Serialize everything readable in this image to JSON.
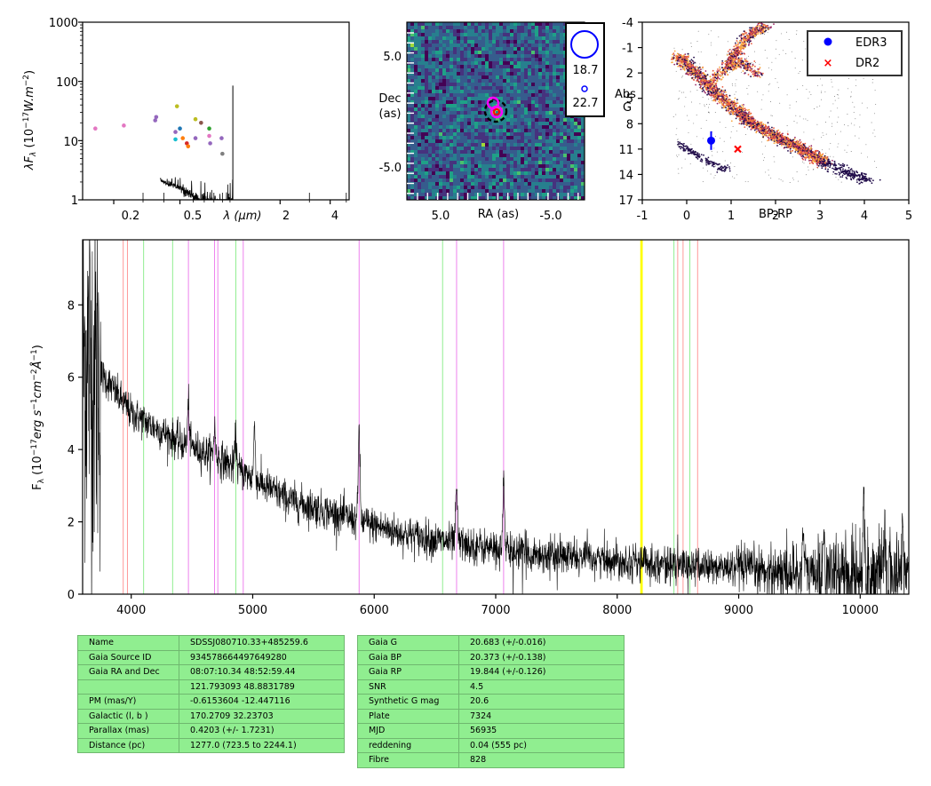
{
  "colors": {
    "hydrogen_lines": "#ff9999",
    "green_lines": "#90ee90",
    "violet_lines": "#ee82ee",
    "yellow_band": "#ffff00",
    "table_bg": "#90ee90",
    "edr3": "#0000ff",
    "dr2": "#ff0000"
  },
  "sed": {
    "ylabel": "λF",
    "ylabel_sub": "λ",
    "ylabel_units": "(10",
    "ylabel_exp": "−17",
    "ylabel_units2": "W.m",
    "ylabel_exp2": "−2",
    "ylabel_close": ")",
    "xlabel": "λ (μm)",
    "yticks": [
      "1000",
      "100",
      "10",
      "1"
    ],
    "xticks": [
      "0.2",
      "0.5",
      "2",
      "4"
    ],
    "scale": "log-log"
  },
  "image_panel": {
    "xlabel": "RA (as)",
    "ylabel_1": "Dec",
    "ylabel_2": "(as)",
    "xticks": [
      "5.0",
      "-5.0"
    ],
    "yticks": [
      "5.0",
      "-5.0"
    ],
    "legend_large": "18.7",
    "legend_small": "22.7"
  },
  "hr": {
    "xlabel": "BP-RP",
    "ylabel_1": "Abs",
    "ylabel_2": "G",
    "xticks": [
      "-1",
      "0",
      "1",
      "2",
      "3",
      "4",
      "5"
    ],
    "yticks": [
      "-4",
      "-1",
      "2",
      "5",
      "8",
      "11",
      "14",
      "17"
    ],
    "legend": [
      {
        "label": "EDR3",
        "marker": "dot",
        "color": "#0000ff"
      },
      {
        "label": "DR2",
        "marker": "x",
        "color": "#ff0000"
      }
    ]
  },
  "chart_data": [
    {
      "type": "scatter",
      "panel": "SED",
      "xscale": "log",
      "yscale": "log",
      "xlim": [
        0.13,
        5.2
      ],
      "ylim": [
        1,
        1000
      ],
      "points": [
        {
          "x": 0.155,
          "y": 16,
          "color": "#e377c2"
        },
        {
          "x": 0.23,
          "y": 18,
          "color": "#e377c2"
        },
        {
          "x": 0.355,
          "y": 22,
          "color": "#9467bd"
        },
        {
          "x": 0.36,
          "y": 25,
          "color": "#9467bd"
        },
        {
          "x": 0.47,
          "y": 14,
          "color": "#9467bd"
        },
        {
          "x": 0.48,
          "y": 38,
          "color": "#bcbd22"
        },
        {
          "x": 0.47,
          "y": 10.5,
          "color": "#17becf"
        },
        {
          "x": 0.5,
          "y": 16,
          "color": "#1f77b4"
        },
        {
          "x": 0.52,
          "y": 11,
          "color": "#ff7f0e"
        },
        {
          "x": 0.55,
          "y": 9,
          "color": "#d62728"
        },
        {
          "x": 0.56,
          "y": 8,
          "color": "#ff7f0e"
        },
        {
          "x": 0.62,
          "y": 23,
          "color": "#bcbd22"
        },
        {
          "x": 0.62,
          "y": 11,
          "color": "#9467bd"
        },
        {
          "x": 0.67,
          "y": 20,
          "color": "#8c564b"
        },
        {
          "x": 0.75,
          "y": 16,
          "color": "#2ca02c"
        },
        {
          "x": 0.75,
          "y": 12,
          "color": "#e377c2"
        },
        {
          "x": 0.76,
          "y": 9,
          "color": "#9467bd"
        },
        {
          "x": 0.89,
          "y": 11,
          "color": "#9467bd"
        },
        {
          "x": 0.9,
          "y": 6,
          "color": "#7f7f7f"
        }
      ]
    },
    {
      "type": "scatter",
      "panel": "HR diagram",
      "xlim": [
        -1,
        5
      ],
      "ylim": [
        17,
        -4
      ],
      "points": [
        {
          "label": "EDR3",
          "x": 0.55,
          "y": 10.0,
          "yerr": 1.1,
          "color": "#0000ff"
        },
        {
          "label": "DR2",
          "x": 1.15,
          "y": 11.0,
          "color": "#ff0000"
        }
      ]
    },
    {
      "type": "line",
      "panel": "spectrum",
      "xlabel": "",
      "ylabel": "F",
      "ylabel_sub": "λ",
      "ylabel_units": "(10",
      "ylabel_exp": "−17",
      "ylabel_units2": "erg s",
      "ylabel_exp2": "−1",
      "ylabel_units3": "cm",
      "ylabel_exp3": "−2",
      "ylabel_units4": "Å",
      "ylabel_exp4": "−1",
      "ylabel_close": ")",
      "xlim": [
        3600,
        10400
      ],
      "ylim": [
        0,
        9.8
      ],
      "xticks": [
        4000,
        5000,
        6000,
        7000,
        8000,
        9000,
        10000
      ],
      "yticks": [
        0,
        2,
        4,
        6,
        8
      ],
      "continuum_knots": [
        [
          3600,
          6.6
        ],
        [
          3800,
          5.9
        ],
        [
          4000,
          5.0
        ],
        [
          4200,
          4.6
        ],
        [
          4400,
          4.2
        ],
        [
          4700,
          3.8
        ],
        [
          5000,
          3.2
        ],
        [
          5300,
          2.6
        ],
        [
          5600,
          2.3
        ],
        [
          5900,
          2.0
        ],
        [
          6200,
          1.7
        ],
        [
          6500,
          1.5
        ],
        [
          6800,
          1.35
        ],
        [
          7100,
          1.2
        ],
        [
          7500,
          1.05
        ],
        [
          8000,
          0.95
        ],
        [
          8500,
          0.8
        ],
        [
          9000,
          0.7
        ],
        [
          9500,
          0.6
        ],
        [
          10000,
          0.55
        ],
        [
          10400,
          0.5
        ]
      ],
      "emission_lines": [
        [
          4471,
          1.2
        ],
        [
          4686,
          0.8
        ],
        [
          4861,
          0.9
        ],
        [
          5015,
          1.4
        ],
        [
          5876,
          2.6
        ],
        [
          6678,
          1.5
        ],
        [
          7065,
          1.9
        ],
        [
          9530,
          1.2
        ],
        [
          9700,
          1.1
        ],
        [
          10030,
          2.2
        ],
        [
          10200,
          1.2
        ],
        [
          10350,
          1.6
        ]
      ],
      "line_markers": [
        {
          "x": 3934,
          "color": "#ff9999"
        },
        {
          "x": 3969,
          "color": "#ff9999"
        },
        {
          "x": 4102,
          "color": "#90ee90"
        },
        {
          "x": 4341,
          "color": "#90ee90"
        },
        {
          "x": 4471,
          "color": "#ee82ee"
        },
        {
          "x": 4686,
          "color": "#ee82ee"
        },
        {
          "x": 4713,
          "color": "#ee82ee"
        },
        {
          "x": 4861,
          "color": "#90ee90"
        },
        {
          "x": 4922,
          "color": "#ee82ee"
        },
        {
          "x": 5876,
          "color": "#ee82ee"
        },
        {
          "x": 6563,
          "color": "#90ee90"
        },
        {
          "x": 6678,
          "color": "#ee82ee"
        },
        {
          "x": 7065,
          "color": "#ee82ee"
        },
        {
          "x": 8498,
          "color": "#ff9999"
        },
        {
          "x": 8542,
          "color": "#ff9999"
        },
        {
          "x": 8662,
          "color": "#ff9999"
        },
        {
          "x": 8467,
          "color": "#90ee90"
        },
        {
          "x": 8598,
          "color": "#90ee90"
        }
      ],
      "yellow_band": [
        8190,
        8210
      ]
    }
  ],
  "table_left": [
    {
      "key": "Name",
      "value": "SDSSJ080710.33+485259.6"
    },
    {
      "key": "Gaia Source ID",
      "value": "934578664497649280"
    },
    {
      "key": "Gaia RA and Dec",
      "value": "08:07:10.34    48:52:59.44"
    },
    {
      "key": "",
      "value": "121.793093    48.8831789"
    },
    {
      "key": "PM (mas/Y)",
      "value": "-0.6153604    -12.447116"
    },
    {
      "key": "Galactic (l, b )",
      "value": "170.2709    32.23703"
    },
    {
      "key": "Parallax (mas)",
      "value": "0.4203 (+/- 1.7231)"
    },
    {
      "key": "Distance (pc)",
      "value": "1277.0 (723.5 to 2244.1)"
    }
  ],
  "table_right": [
    {
      "key": "Gaia G",
      "value": "20.683 (+/-0.016)"
    },
    {
      "key": "Gaia BP",
      "value": "20.373 (+/-0.138)"
    },
    {
      "key": "Gaia RP",
      "value": "19.844 (+/-0.126)"
    },
    {
      "key": "SNR",
      "value": "4.5"
    },
    {
      "key": "Synthetic G mag",
      "value": "20.6"
    },
    {
      "key": "Plate",
      "value": "7324"
    },
    {
      "key": "MJD",
      "value": "56935"
    },
    {
      "key": "reddening",
      "value": "0.04 (555 pc)"
    },
    {
      "key": "Fibre",
      "value": "828"
    }
  ]
}
